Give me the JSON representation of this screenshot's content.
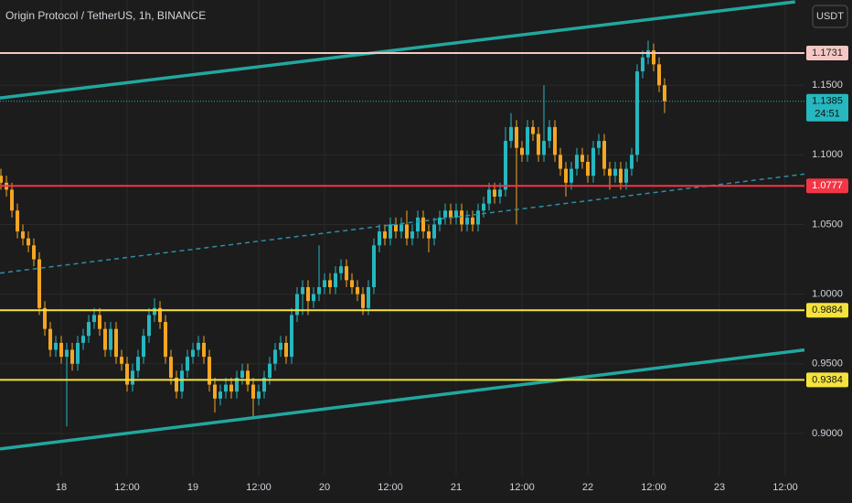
{
  "chart_data": {
    "type": "candlestick",
    "title": "Origin Protocol / TetherUS, 1h, BINANCE",
    "currency": "USDT",
    "up_color": "#26b7bf",
    "down_color": "#f5a623",
    "grid": true,
    "xlim": [
      -11.17,
      135.5
    ],
    "ylim": [
      0.8697,
      1.2112
    ],
    "xticks": [
      {
        "value": 0,
        "label": "18"
      },
      {
        "value": 12,
        "label": "12:00"
      },
      {
        "value": 24,
        "label": "19"
      },
      {
        "value": 36,
        "label": "12:00"
      },
      {
        "value": 48,
        "label": "20"
      },
      {
        "value": 60,
        "label": "12:00"
      },
      {
        "value": 72,
        "label": "21"
      },
      {
        "value": 84,
        "label": "12:00"
      },
      {
        "value": 96,
        "label": "22"
      },
      {
        "value": 108,
        "label": "12:00"
      },
      {
        "value": 120,
        "label": "23"
      },
      {
        "value": 132,
        "label": "12:00"
      }
    ],
    "yticks": [
      {
        "value": 0.9,
        "label": "0.9000"
      },
      {
        "value": 0.95,
        "label": "0.9500"
      },
      {
        "value": 1.0,
        "label": "1.0000"
      },
      {
        "value": 1.05,
        "label": "1.0500"
      },
      {
        "value": 1.1,
        "label": "1.1000"
      },
      {
        "value": 1.15,
        "label": "1.1500"
      }
    ],
    "x": [
      -11,
      -10,
      -9,
      -8,
      -7,
      -6,
      -5,
      -4,
      -3,
      -2,
      -1,
      0,
      1,
      2,
      3,
      4,
      5,
      6,
      7,
      8,
      9,
      10,
      11,
      12,
      13,
      14,
      15,
      16,
      17,
      18,
      19,
      20,
      21,
      22,
      23,
      24,
      25,
      26,
      27,
      28,
      29,
      30,
      31,
      32,
      33,
      34,
      35,
      36,
      37,
      38,
      39,
      40,
      41,
      42,
      43,
      44,
      45,
      46,
      47,
      48,
      49,
      50,
      51,
      52,
      53,
      54,
      55,
      56,
      57,
      58,
      59,
      60,
      61,
      62,
      63,
      64,
      65,
      66,
      67,
      68,
      69,
      70,
      71,
      72,
      73,
      74,
      75,
      76,
      77,
      78,
      79,
      80,
      81,
      82,
      83,
      84,
      85,
      86,
      87,
      88,
      89,
      90,
      91,
      92,
      93,
      94,
      95,
      96,
      97,
      98,
      99,
      100,
      101,
      102,
      103,
      104,
      105,
      106,
      107,
      108,
      109,
      110
    ],
    "open": [
      1.085,
      1.08,
      1.075,
      1.06,
      1.045,
      1.04,
      1.035,
      1.025,
      0.99,
      0.975,
      0.96,
      0.965,
      0.955,
      0.96,
      0.95,
      0.965,
      0.97,
      0.98,
      0.985,
      0.975,
      0.96,
      0.975,
      0.955,
      0.95,
      0.935,
      0.945,
      0.955,
      0.97,
      0.985,
      0.99,
      0.98,
      0.955,
      0.94,
      0.93,
      0.945,
      0.955,
      0.96,
      0.965,
      0.955,
      0.935,
      0.925,
      0.93,
      0.935,
      0.93,
      0.94,
      0.945,
      0.935,
      0.925,
      0.93,
      0.94,
      0.95,
      0.96,
      0.965,
      0.955,
      0.985,
      1.0,
      1.005,
      0.995,
      1.0,
      1.005,
      1.01,
      1.005,
      1.015,
      1.02,
      1.01,
      1.005,
      1.0,
      0.99,
      1.005,
      1.035,
      1.045,
      1.04,
      1.05,
      1.045,
      1.05,
      1.04,
      1.045,
      1.055,
      1.045,
      1.04,
      1.05,
      1.055,
      1.06,
      1.055,
      1.06,
      1.05,
      1.055,
      1.05,
      1.06,
      1.065,
      1.075,
      1.07,
      1.075,
      1.11,
      1.12,
      1.105,
      1.1,
      1.12,
      1.115,
      1.1,
      1.11,
      1.12,
      1.1,
      1.09,
      1.08,
      1.09,
      1.1,
      1.095,
      1.085,
      1.105,
      1.11,
      1.09,
      1.085,
      1.09,
      1.08,
      1.09,
      1.1,
      1.16,
      1.17,
      1.175,
      1.165,
      1.15
    ],
    "high": [
      1.09,
      1.085,
      1.08,
      1.065,
      1.05,
      1.045,
      1.04,
      1.03,
      0.995,
      0.98,
      0.97,
      0.97,
      0.965,
      0.965,
      0.97,
      0.975,
      0.985,
      0.99,
      0.99,
      0.98,
      0.98,
      0.98,
      0.96,
      0.955,
      0.95,
      0.96,
      0.975,
      0.99,
      0.997,
      0.995,
      0.985,
      0.96,
      0.945,
      0.95,
      0.96,
      0.965,
      0.97,
      0.97,
      0.96,
      0.94,
      0.935,
      0.94,
      0.94,
      0.945,
      0.95,
      0.95,
      0.94,
      0.935,
      0.945,
      0.955,
      0.965,
      0.97,
      0.97,
      0.99,
      1.005,
      1.01,
      1.01,
      1.005,
      1.035,
      1.015,
      1.015,
      1.02,
      1.025,
      1.025,
      1.015,
      1.01,
      1.005,
      1.01,
      1.04,
      1.05,
      1.05,
      1.055,
      1.055,
      1.055,
      1.06,
      1.05,
      1.06,
      1.06,
      1.05,
      1.055,
      1.06,
      1.065,
      1.065,
      1.065,
      1.065,
      1.06,
      1.06,
      1.065,
      1.07,
      1.08,
      1.08,
      1.08,
      1.12,
      1.13,
      1.125,
      1.11,
      1.125,
      1.125,
      1.12,
      1.15,
      1.125,
      1.125,
      1.105,
      1.095,
      1.095,
      1.105,
      1.105,
      1.1,
      1.11,
      1.115,
      1.115,
      1.095,
      1.095,
      1.095,
      1.095,
      1.105,
      1.165,
      1.175,
      1.182,
      1.18,
      1.17,
      1.155
    ],
    "low": [
      1.075,
      1.07,
      1.055,
      1.04,
      1.035,
      1.03,
      1.02,
      0.985,
      0.97,
      0.955,
      0.955,
      0.95,
      0.905,
      0.945,
      0.945,
      0.96,
      0.965,
      0.975,
      0.97,
      0.955,
      0.955,
      0.95,
      0.945,
      0.93,
      0.93,
      0.94,
      0.95,
      0.965,
      0.98,
      0.975,
      0.95,
      0.935,
      0.925,
      0.925,
      0.94,
      0.95,
      0.955,
      0.95,
      0.93,
      0.915,
      0.92,
      0.925,
      0.925,
      0.925,
      0.935,
      0.93,
      0.91,
      0.92,
      0.925,
      0.935,
      0.945,
      0.955,
      0.95,
      0.95,
      0.98,
      0.985,
      0.985,
      0.99,
      0.995,
      1.0,
      1.0,
      1.0,
      1.01,
      1.005,
      1.0,
      0.995,
      0.985,
      0.985,
      1.0,
      1.03,
      1.035,
      1.035,
      1.04,
      1.04,
      1.035,
      1.035,
      1.04,
      1.04,
      1.03,
      1.035,
      1.045,
      1.05,
      1.05,
      1.05,
      1.045,
      1.045,
      1.045,
      1.045,
      1.055,
      1.06,
      1.065,
      1.065,
      1.07,
      1.105,
      1.05,
      1.095,
      1.095,
      1.11,
      1.095,
      1.095,
      1.105,
      1.095,
      1.085,
      1.07,
      1.075,
      1.085,
      1.09,
      1.08,
      1.08,
      1.1,
      1.085,
      1.075,
      1.08,
      1.075,
      1.075,
      1.085,
      1.095,
      1.155,
      1.165,
      1.16,
      1.145,
      1.13
    ],
    "close": [
      1.08,
      1.075,
      1.06,
      1.045,
      1.04,
      1.035,
      1.025,
      0.99,
      0.975,
      0.96,
      0.965,
      0.955,
      0.96,
      0.95,
      0.965,
      0.97,
      0.98,
      0.985,
      0.975,
      0.96,
      0.975,
      0.955,
      0.95,
      0.935,
      0.945,
      0.955,
      0.97,
      0.985,
      0.99,
      0.98,
      0.955,
      0.94,
      0.93,
      0.945,
      0.955,
      0.96,
      0.965,
      0.955,
      0.935,
      0.925,
      0.93,
      0.935,
      0.93,
      0.94,
      0.945,
      0.935,
      0.925,
      0.93,
      0.94,
      0.95,
      0.96,
      0.965,
      0.955,
      0.985,
      1.0,
      1.005,
      0.995,
      1.0,
      1.005,
      1.01,
      1.005,
      1.015,
      1.02,
      1.01,
      1.005,
      1.0,
      0.99,
      1.005,
      1.035,
      1.045,
      1.04,
      1.05,
      1.045,
      1.05,
      1.04,
      1.045,
      1.055,
      1.045,
      1.04,
      1.05,
      1.055,
      1.06,
      1.055,
      1.06,
      1.05,
      1.055,
      1.05,
      1.06,
      1.065,
      1.075,
      1.07,
      1.075,
      1.11,
      1.12,
      1.105,
      1.1,
      1.12,
      1.115,
      1.1,
      1.11,
      1.12,
      1.1,
      1.09,
      1.08,
      1.09,
      1.1,
      1.095,
      1.085,
      1.105,
      1.11,
      1.09,
      1.085,
      1.09,
      1.08,
      1.09,
      1.1,
      1.16,
      1.17,
      1.175,
      1.165,
      1.15,
      1.1385
    ],
    "hlines": [
      {
        "value": 1.1731,
        "color": "#f4c7c3",
        "text_color": "#222"
      },
      {
        "value": 1.1385,
        "color": "#26b7bf",
        "text_color": "#111",
        "dotted": true,
        "countdown": "24:51"
      },
      {
        "value": 1.0777,
        "color": "#f23645",
        "text_color": "#fff"
      },
      {
        "value": 0.9884,
        "color": "#f5e33b",
        "text_color": "#111"
      },
      {
        "value": 0.9384,
        "color": "#f5e33b",
        "text_color": "#111"
      }
    ],
    "trendlines": [
      {
        "x": [
          -11.17,
          133.8
        ],
        "y": [
          1.1408,
          1.2099
        ],
        "color": "#22a7a0"
      },
      {
        "x": [
          -11.17,
          135.5
        ],
        "y": [
          0.8888,
          0.9599
        ],
        "color": "#22a7a0"
      },
      {
        "x": [
          -11.17,
          135.5
        ],
        "y": [
          1.0151,
          1.0862
        ],
        "color": "#2a8fa8",
        "dashed": true
      }
    ]
  }
}
